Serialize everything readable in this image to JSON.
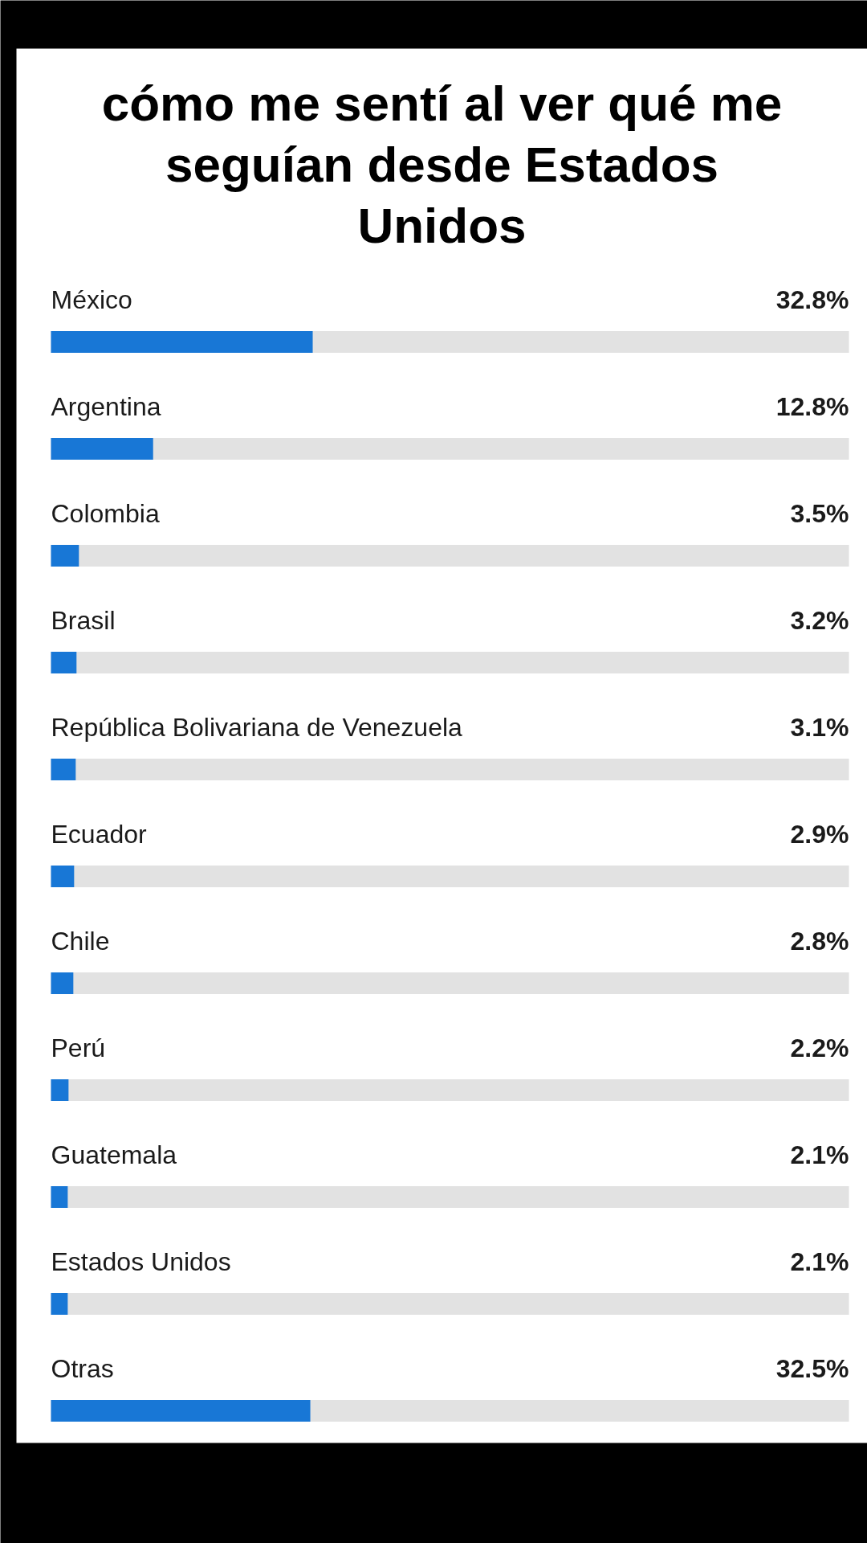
{
  "chart_data": {
    "type": "bar",
    "orientation": "horizontal",
    "title": "cómo me sentí al ver qué me seguían desde Estados Unidos",
    "categories": [
      "México",
      "Argentina",
      "Colombia",
      "Brasil",
      "República Bolivariana de Venezuela",
      "Ecuador",
      "Chile",
      "Perú",
      "Guatemala",
      "Estados Unidos",
      "Otras"
    ],
    "values": [
      32.8,
      12.8,
      3.5,
      3.2,
      3.1,
      2.9,
      2.8,
      2.2,
      2.1,
      2.1,
      32.5
    ],
    "value_labels": [
      "32.8%",
      "12.8%",
      "3.5%",
      "3.2%",
      "3.1%",
      "2.9%",
      "2.8%",
      "2.2%",
      "2.1%",
      "2.1%",
      "32.5%"
    ],
    "color": "#1877d6",
    "xlim": [
      0,
      100
    ],
    "tick_labels": "y"
  }
}
